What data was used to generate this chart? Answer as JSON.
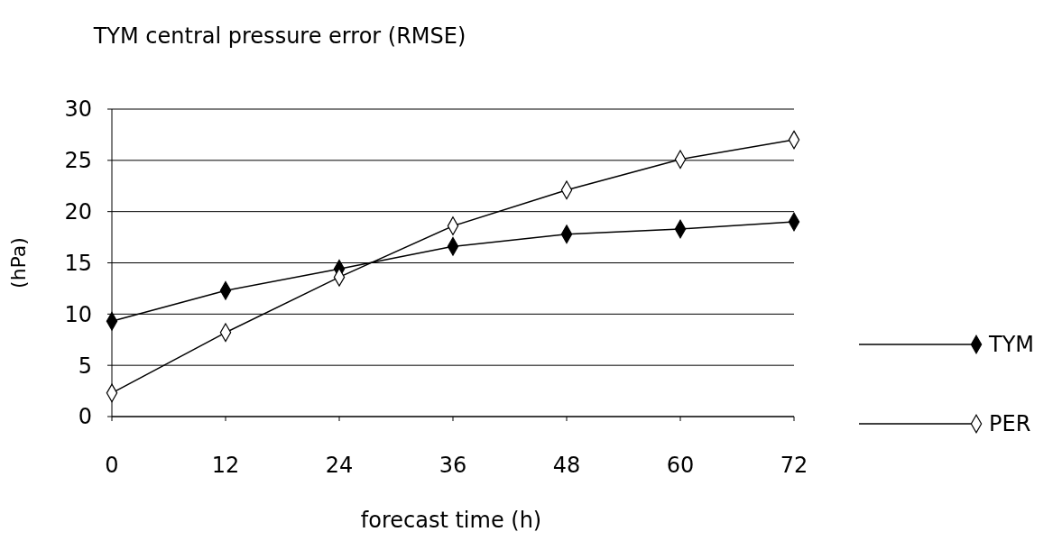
{
  "chart_data": {
    "type": "line",
    "title": "TYM central pressure error (RMSE)",
    "xlabel": "forecast time (h)",
    "ylabel": "(hPa)",
    "x": [
      0,
      12,
      24,
      36,
      48,
      60,
      72
    ],
    "series": [
      {
        "name": "TYM",
        "color": "#000000",
        "values": [
          9.3,
          12.3,
          14.4,
          16.6,
          17.8,
          18.3,
          19.0
        ]
      },
      {
        "name": "PER",
        "color": "#ffffff",
        "values": [
          2.3,
          8.2,
          13.6,
          18.6,
          22.1,
          25.1,
          27.0
        ]
      }
    ],
    "xlim": [
      0,
      72
    ],
    "xticks": [
      0,
      12,
      24,
      36,
      48,
      60,
      72
    ],
    "ylim": [
      0,
      30
    ],
    "yticks": [
      0,
      5,
      10,
      15,
      20,
      25,
      30
    ],
    "grid": "y",
    "legend": "right",
    "marker": "diamond",
    "line_style": "solid"
  }
}
